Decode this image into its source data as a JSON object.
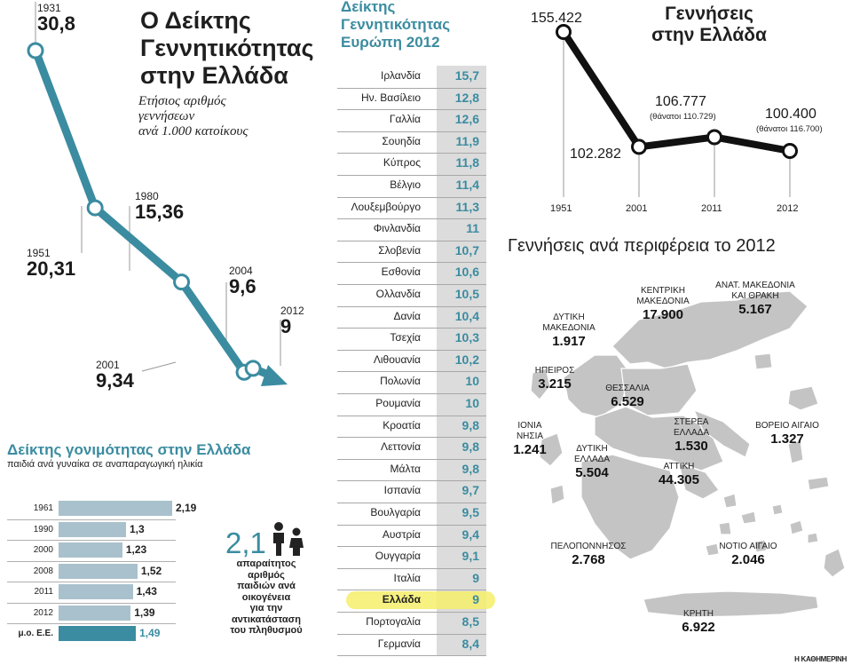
{
  "left_chart": {
    "title_lines": [
      "Ο Δείκτης",
      "Γεννητικότητας",
      "στην Ελλάδα"
    ],
    "subtitle_lines": [
      "Ετήσιος αριθμός",
      "γεννήσεων",
      "ανά 1.000 κατοίκους"
    ],
    "points": [
      {
        "year": "1931",
        "value": "30,8"
      },
      {
        "year": "1951",
        "value": "20,31"
      },
      {
        "year": "1980",
        "value": "15,36"
      },
      {
        "year": "2001",
        "value": "9,34"
      },
      {
        "year": "2004",
        "value": "9,6"
      },
      {
        "year": "2012",
        "value": "9"
      }
    ]
  },
  "europe_table": {
    "title_lines": [
      "Δείκτης",
      "Γεννητικότητας",
      "Ευρώπη 2012"
    ],
    "rows": [
      {
        "country": "Ιρλανδία",
        "value": "15,7"
      },
      {
        "country": "Ην. Βασίλειο",
        "value": "12,8"
      },
      {
        "country": "Γαλλία",
        "value": "12,6"
      },
      {
        "country": "Σουηδία",
        "value": "11,9"
      },
      {
        "country": "Κύπρος",
        "value": "11,8"
      },
      {
        "country": "Βέλγιο",
        "value": "11,4"
      },
      {
        "country": "Λουξεμβούργο",
        "value": "11,3"
      },
      {
        "country": "Φινλανδία",
        "value": "11"
      },
      {
        "country": "Σλοβενία",
        "value": "10,7"
      },
      {
        "country": "Εσθονία",
        "value": "10,6"
      },
      {
        "country": "Ολλανδία",
        "value": "10,5"
      },
      {
        "country": "Δανία",
        "value": "10,4"
      },
      {
        "country": "Τσεχία",
        "value": "10,3"
      },
      {
        "country": "Λιθουανία",
        "value": "10,2"
      },
      {
        "country": "Πολωνία",
        "value": "10"
      },
      {
        "country": "Ρουμανία",
        "value": "10"
      },
      {
        "country": "Κροατία",
        "value": "9,8"
      },
      {
        "country": "Λεττονία",
        "value": "9,8"
      },
      {
        "country": "Μάλτα",
        "value": "9,8"
      },
      {
        "country": "Ισπανία",
        "value": "9,7"
      },
      {
        "country": "Βουλγαρία",
        "value": "9,5"
      },
      {
        "country": "Αυστρία",
        "value": "9,4"
      },
      {
        "country": "Ουγγαρία",
        "value": "9,1"
      },
      {
        "country": "Ιταλία",
        "value": "9"
      },
      {
        "country": "Ελλάδα",
        "value": "9"
      },
      {
        "country": "Πορτογαλία",
        "value": "8,5"
      },
      {
        "country": "Γερμανία",
        "value": "8,4"
      }
    ],
    "highlight_country": "Ελλάδα",
    "highlight_color": "#f4ef6a"
  },
  "births_chart": {
    "title_lines": [
      "Γεννήσεις",
      "στην Ελλάδα"
    ],
    "points": [
      {
        "year": "1951",
        "value": "155.422",
        "deaths": ""
      },
      {
        "year": "2001",
        "value": "102.282",
        "deaths": ""
      },
      {
        "year": "2011",
        "value": "106.777",
        "deaths": "(θάνατοι 110.729)"
      },
      {
        "year": "2012",
        "value": "100.400",
        "deaths": "(θάνατοι 116.700)"
      }
    ]
  },
  "fertility_chart": {
    "title": "Δείκτης γονιμότητας στην Ελλάδα",
    "subtitle": "παιδιά ανά γυναίκα σε αναπαραγωγική ηλικία",
    "bars": [
      {
        "label": "1961",
        "value": "2,19"
      },
      {
        "label": "1990",
        "value": "1,3"
      },
      {
        "label": "2000",
        "value": "1,23"
      },
      {
        "label": "2008",
        "value": "1,52"
      },
      {
        "label": "2011",
        "value": "1,43"
      },
      {
        "label": "2012",
        "value": "1,39"
      },
      {
        "label": "μ.ο. Ε.Ε.",
        "value": "1,49"
      }
    ],
    "replacement_value": "2,1",
    "replacement_text_lines": [
      "απαραίτητος",
      "αριθμός",
      "παιδιών ανά",
      "οικογένεια",
      "για την",
      "αντικατάσταση",
      "του πληθυσμού"
    ]
  },
  "regions_map": {
    "title": "Γεννήσεις ανά περιφέρεια το 2012",
    "regions": [
      {
        "name_lines": [
          "ΚΕΝΤΡΙΚΗ",
          "ΜΑΚΕΔΟΝΙΑ"
        ],
        "value": "17.900"
      },
      {
        "name_lines": [
          "ΑΝΑΤ. ΜΑΚΕΔΟΝΙΑ",
          "ΚΑΙ ΘΡΑΚΗ"
        ],
        "value": "5.167"
      },
      {
        "name_lines": [
          "ΔΥΤΙΚΗ",
          "ΜΑΚΕΔΟΝΙΑ"
        ],
        "value": "1.917"
      },
      {
        "name_lines": [
          "ΗΠΕΙΡΟΣ"
        ],
        "value": "3.215"
      },
      {
        "name_lines": [
          "ΘΕΣΣΑΛΙΑ"
        ],
        "value": "6.529"
      },
      {
        "name_lines": [
          "ΙΟΝΙΑ",
          "ΝΗΣΙΑ"
        ],
        "value": "1.241"
      },
      {
        "name_lines": [
          "ΣΤΕΡΕΑ",
          "ΕΛΛΑΔΑ"
        ],
        "value": "1.530"
      },
      {
        "name_lines": [
          "ΒΟΡΕΙΟ ΑΙΓΑΙΟ"
        ],
        "value": "1.327"
      },
      {
        "name_lines": [
          "ΔΥΤΙΚΗ",
          "ΕΛΛΑΔΑ"
        ],
        "value": "5.504"
      },
      {
        "name_lines": [
          "ΑΤΤΙΚΗ"
        ],
        "value": "44.305"
      },
      {
        "name_lines": [
          "ΠΕΛΟΠΟΝΝΗΣΟΣ"
        ],
        "value": "2.768"
      },
      {
        "name_lines": [
          "ΝΟΤΙΟ ΑΙΓΑΙΟ"
        ],
        "value": "2.046"
      },
      {
        "name_lines": [
          "ΚΡΗΤΗ"
        ],
        "value": "6.922"
      }
    ]
  },
  "credit": "Η ΚΑΘΗΜΕΡΙΝΗ",
  "colors": {
    "teal": "#3b8ca0",
    "light_teal": "#a9c1cc",
    "dark": "#1a1a1a",
    "map_gray": "#c4c4c4"
  },
  "chart_data": [
    {
      "type": "line",
      "title": "Ο Δείκτης Γεννητικότητας στην Ελλάδα",
      "subtitle": "Ετήσιος αριθμός γεννήσεων ανά 1.000 κατοίκους",
      "x": [
        1931,
        1951,
        1980,
        2001,
        2004,
        2012
      ],
      "series": [
        {
          "values": [
            30.8,
            20.31,
            15.36,
            9.34,
            9.6,
            9
          ]
        }
      ]
    },
    {
      "type": "table",
      "title": "Δείκτης Γεννητικότητας Ευρώπη 2012",
      "categories": [
        "Ιρλανδία",
        "Ην. Βασίλειο",
        "Γαλλία",
        "Σουηδία",
        "Κύπρος",
        "Βέλγιο",
        "Λουξεμβούργο",
        "Φινλανδία",
        "Σλοβενία",
        "Εσθονία",
        "Ολλανδία",
        "Δανία",
        "Τσεχία",
        "Λιθουανία",
        "Πολωνία",
        "Ρουμανία",
        "Κροατία",
        "Λεττονία",
        "Μάλτα",
        "Ισπανία",
        "Βουλγαρία",
        "Αυστρία",
        "Ουγγαρία",
        "Ιταλία",
        "Ελλάδα",
        "Πορτογαλία",
        "Γερμανία"
      ],
      "values": [
        15.7,
        12.8,
        12.6,
        11.9,
        11.8,
        11.4,
        11.3,
        11,
        10.7,
        10.6,
        10.5,
        10.4,
        10.3,
        10.2,
        10,
        10,
        9.8,
        9.8,
        9.8,
        9.7,
        9.5,
        9.4,
        9.1,
        9,
        9,
        8.5,
        8.4
      ]
    },
    {
      "type": "line",
      "title": "Γεννήσεις στην Ελλάδα",
      "x": [
        1951,
        2001,
        2011,
        2012
      ],
      "series": [
        {
          "values": [
            155422,
            102282,
            106777,
            100400
          ]
        }
      ]
    },
    {
      "type": "bar",
      "title": "Δείκτης γονιμότητας στην Ελλάδα",
      "subtitle": "παιδιά ανά γυναίκα σε αναπαραγωγική ηλικία",
      "categories": [
        "1961",
        "1990",
        "2000",
        "2008",
        "2011",
        "2012",
        "μ.ο. Ε.Ε."
      ],
      "values": [
        2.19,
        1.3,
        1.23,
        1.52,
        1.43,
        1.39,
        1.49
      ]
    }
  ]
}
